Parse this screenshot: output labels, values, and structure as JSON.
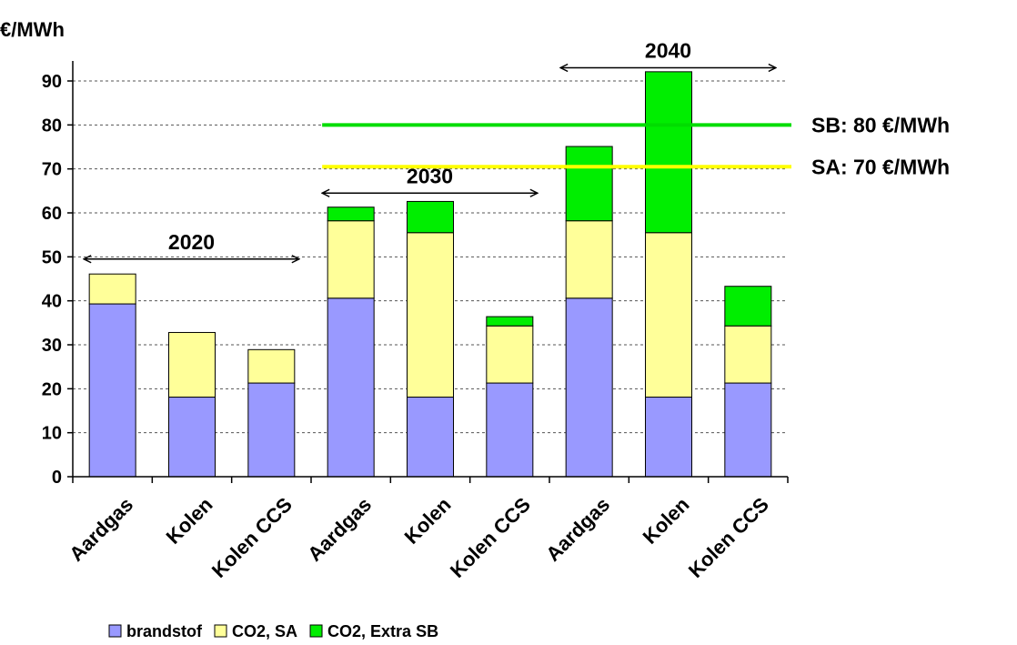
{
  "chart_data": {
    "type": "bar",
    "stacked": true,
    "ylabel": "€/MWh",
    "ylim": [
      0,
      90
    ],
    "yticks": [
      "0",
      "10",
      "20",
      "30",
      "40",
      "50",
      "60",
      "70",
      "80",
      "90"
    ],
    "grid": "horizontal dashed",
    "categories": [
      "Aardgas",
      "Kolen",
      "Kolen CCS",
      "Aardgas",
      "Kolen",
      "Kolen CCS",
      "Aardgas",
      "Kolen",
      "Kolen CCS"
    ],
    "series": [
      {
        "name": "brandstof",
        "color": "#9999FF",
        "values": [
          39.3,
          18.1,
          21.3,
          40.6,
          18.1,
          21.3,
          40.6,
          18.1,
          21.3
        ]
      },
      {
        "name": "CO2, SA",
        "color": "#FFFF99",
        "values": [
          6.8,
          14.7,
          7.6,
          17.6,
          37.4,
          13.0,
          17.6,
          37.4,
          13.0
        ]
      },
      {
        "name": "CO2, Extra SB",
        "color": "#00EE00",
        "values": [
          0,
          0,
          0,
          3.1,
          7.1,
          2.1,
          16.9,
          36.6,
          9.0
        ]
      }
    ],
    "periods": [
      {
        "label": "2020",
        "from": 0,
        "to": 2
      },
      {
        "label": "2030",
        "from": 3,
        "to": 5
      },
      {
        "label": "2040",
        "from": 6,
        "to": 8
      }
    ],
    "reference_lines": [
      {
        "label": "SB: 80 €/MWh",
        "value": 80,
        "color": "#00DD00",
        "start_category": 3
      },
      {
        "label": "SA: 70 €/MWh",
        "value": 70.5,
        "color": "#FFFF00",
        "start_category": 3
      }
    ],
    "legend_position": "bottom"
  }
}
